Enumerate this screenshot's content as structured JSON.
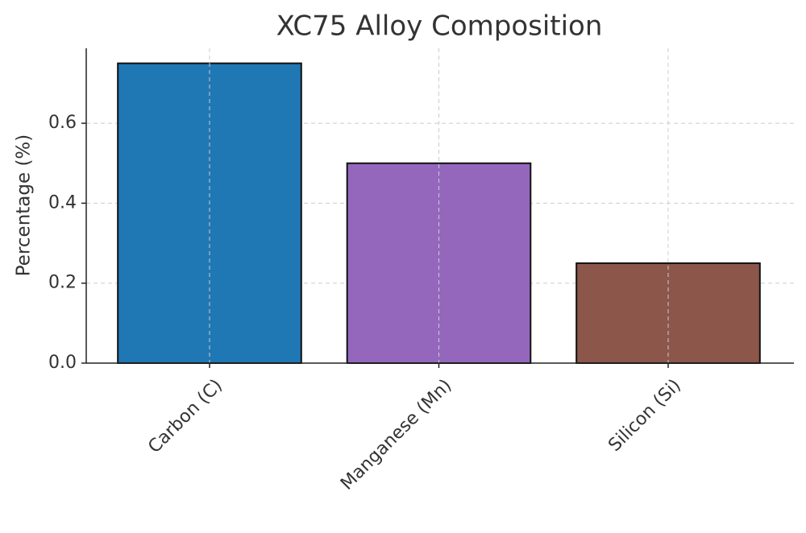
{
  "chart_data": {
    "type": "bar",
    "title": "XC75 Alloy Composition",
    "y_label": "Percentage (%)",
    "categories": [
      "Carbon (C)",
      "Manganese (Mn)",
      "Silicon (Si)"
    ],
    "values": [
      0.75,
      0.5,
      0.25
    ],
    "colors": [
      "#1f77b4",
      "#9467bd",
      "#8c564b"
    ],
    "ylim": [
      0,
      0.7875
    ],
    "yticks": [
      {
        "value": 0,
        "label": "0.0"
      },
      0.2,
      0.4,
      0.6
    ],
    "grid": true
  }
}
